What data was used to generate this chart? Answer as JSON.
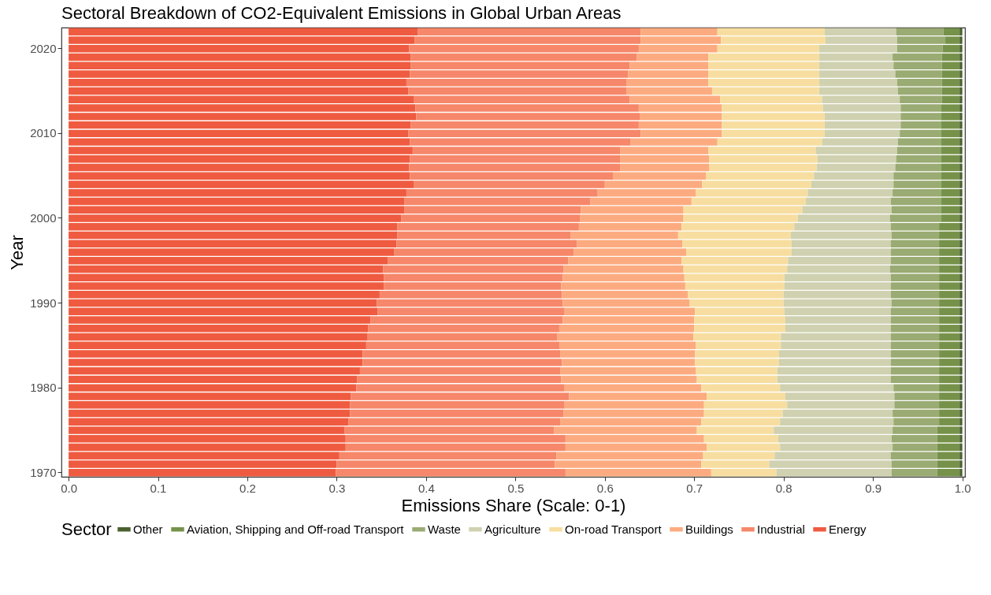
{
  "chart_data": {
    "type": "bar",
    "orientation": "horizontal",
    "stacked": true,
    "title": "Sectoral Breakdown of CO2-Equivalent Emissions in Global Urban Areas",
    "xlabel": "Emissions Share (Scale: 0-1)",
    "ylabel": "Year",
    "legend_title": "Sector",
    "legend": "bottom",
    "grid": false,
    "xlim": [
      -0.008,
      1.003
    ],
    "xticks": [
      {
        "value": 0,
        "label": "0.0"
      },
      {
        "value": 0.1,
        "label": "0.1"
      },
      {
        "value": 0.2,
        "label": "0.2"
      },
      {
        "value": 0.3,
        "label": "0.3"
      },
      {
        "value": 0.4,
        "label": "0.4"
      },
      {
        "value": 0.5,
        "label": "0.5"
      },
      {
        "value": 0.6,
        "label": "0.6"
      },
      {
        "value": 0.7,
        "label": "0.7"
      },
      {
        "value": 0.8,
        "label": "0.8"
      },
      {
        "value": 0.9,
        "label": "0.9"
      },
      {
        "value": 1,
        "label": "1.0"
      }
    ],
    "categories": [
      null,
      null,
      "2020",
      null,
      null,
      null,
      null,
      null,
      null,
      null,
      null,
      null,
      "2010",
      null,
      null,
      null,
      null,
      null,
      null,
      null,
      null,
      null,
      "2000",
      null,
      null,
      null,
      null,
      null,
      null,
      null,
      null,
      null,
      "1990",
      null,
      null,
      null,
      null,
      null,
      null,
      null,
      null,
      null,
      "1980",
      null,
      null,
      null,
      null,
      null,
      null,
      null,
      null,
      null,
      "1970"
    ],
    "series": [
      {
        "name": "Energy",
        "color": "#ef5b40",
        "values": [
          0.391,
          0.387,
          0.381,
          0.383,
          0.383,
          0.382,
          0.378,
          0.38,
          0.386,
          0.388,
          0.389,
          0.383,
          0.38,
          0.382,
          0.385,
          0.382,
          0.381,
          0.382,
          0.386,
          0.378,
          0.376,
          0.376,
          0.372,
          0.368,
          0.368,
          0.367,
          0.364,
          0.357,
          0.352,
          0.353,
          0.353,
          0.348,
          0.345,
          0.346,
          0.338,
          0.335,
          0.334,
          0.333,
          0.329,
          0.329,
          0.326,
          0.323,
          0.322,
          0.316,
          0.315,
          0.315,
          0.313,
          0.309,
          0.31,
          0.31,
          0.303,
          0.3,
          0.299
        ]
      },
      {
        "name": "Industrial",
        "color": "#f6876a",
        "values": [
          0.249,
          0.253,
          0.257,
          0.253,
          0.245,
          0.244,
          0.246,
          0.244,
          0.242,
          0.25,
          0.25,
          0.255,
          0.26,
          0.247,
          0.232,
          0.235,
          0.236,
          0.227,
          0.214,
          0.214,
          0.208,
          0.197,
          0.2,
          0.203,
          0.194,
          0.202,
          0.201,
          0.202,
          0.202,
          0.2,
          0.198,
          0.204,
          0.208,
          0.209,
          0.215,
          0.214,
          0.213,
          0.216,
          0.221,
          0.223,
          0.224,
          0.228,
          0.233,
          0.244,
          0.24,
          0.239,
          0.237,
          0.234,
          0.246,
          0.246,
          0.243,
          0.244,
          0.257
        ]
      },
      {
        "name": "Buildings",
        "color": "#fcab80",
        "values": [
          0.086,
          0.09,
          0.088,
          0.08,
          0.088,
          0.09,
          0.092,
          0.096,
          0.101,
          0.093,
          0.092,
          0.093,
          0.091,
          0.097,
          0.099,
          0.1,
          0.1,
          0.104,
          0.109,
          0.11,
          0.113,
          0.115,
          0.116,
          0.115,
          0.12,
          0.118,
          0.126,
          0.127,
          0.134,
          0.136,
          0.139,
          0.141,
          0.142,
          0.146,
          0.147,
          0.151,
          0.152,
          0.153,
          0.151,
          0.149,
          0.152,
          0.152,
          0.153,
          0.154,
          0.156,
          0.157,
          0.158,
          0.16,
          0.155,
          0.158,
          0.164,
          0.164,
          0.163
        ]
      },
      {
        "name": "On-road Transport",
        "color": "#f7dea0",
        "values": [
          0.12,
          0.117,
          0.114,
          0.124,
          0.124,
          0.124,
          0.124,
          0.12,
          0.114,
          0.113,
          0.115,
          0.115,
          0.115,
          0.117,
          0.12,
          0.121,
          0.12,
          0.121,
          0.122,
          0.125,
          0.128,
          0.133,
          0.128,
          0.126,
          0.126,
          0.122,
          0.118,
          0.119,
          0.116,
          0.112,
          0.111,
          0.107,
          0.105,
          0.1,
          0.102,
          0.102,
          0.098,
          0.095,
          0.094,
          0.094,
          0.091,
          0.09,
          0.088,
          0.088,
          0.093,
          0.088,
          0.088,
          0.086,
          0.083,
          0.082,
          0.08,
          0.076,
          0.073
        ]
      },
      {
        "name": "Agriculture",
        "color": "#cfd1b0",
        "values": [
          0.08,
          0.08,
          0.087,
          0.082,
          0.083,
          0.085,
          0.087,
          0.088,
          0.087,
          0.087,
          0.085,
          0.085,
          0.084,
          0.085,
          0.091,
          0.088,
          0.088,
          0.089,
          0.092,
          0.095,
          0.095,
          0.1,
          0.103,
          0.108,
          0.113,
          0.111,
          0.111,
          0.115,
          0.115,
          0.119,
          0.119,
          0.12,
          0.121,
          0.119,
          0.118,
          0.118,
          0.123,
          0.123,
          0.125,
          0.125,
          0.127,
          0.127,
          0.127,
          0.122,
          0.12,
          0.123,
          0.127,
          0.133,
          0.127,
          0.126,
          0.13,
          0.137,
          0.129
        ]
      },
      {
        "name": "Waste",
        "color": "#9aab73",
        "values": [
          0.053,
          0.054,
          0.051,
          0.055,
          0.054,
          0.052,
          0.05,
          0.049,
          0.047,
          0.045,
          0.045,
          0.045,
          0.046,
          0.048,
          0.049,
          0.05,
          0.051,
          0.053,
          0.053,
          0.054,
          0.056,
          0.055,
          0.057,
          0.054,
          0.053,
          0.054,
          0.054,
          0.054,
          0.055,
          0.054,
          0.054,
          0.054,
          0.053,
          0.054,
          0.054,
          0.054,
          0.054,
          0.054,
          0.054,
          0.054,
          0.054,
          0.054,
          0.051,
          0.05,
          0.05,
          0.052,
          0.051,
          0.05,
          0.051,
          0.05,
          0.052,
          0.051,
          0.051
        ]
      },
      {
        "name": "Aviation, Shipping and Off-road Transport",
        "color": "#76924a",
        "values": [
          0.018,
          0.016,
          0.019,
          0.02,
          0.02,
          0.02,
          0.02,
          0.02,
          0.02,
          0.021,
          0.021,
          0.021,
          0.021,
          0.021,
          0.021,
          0.021,
          0.021,
          0.021,
          0.021,
          0.021,
          0.021,
          0.021,
          0.021,
          0.023,
          0.023,
          0.023,
          0.023,
          0.023,
          0.023,
          0.023,
          0.023,
          0.023,
          0.023,
          0.023,
          0.023,
          0.023,
          0.023,
          0.023,
          0.023,
          0.023,
          0.023,
          0.023,
          0.023,
          0.023,
          0.023,
          0.023,
          0.023,
          0.025,
          0.025,
          0.025,
          0.025,
          0.025,
          0.025
        ]
      },
      {
        "name": "Other",
        "color": "#4a6130",
        "values": [
          0.003,
          0.003,
          0.003,
          0.003,
          0.003,
          0.003,
          0.003,
          0.003,
          0.003,
          0.003,
          0.003,
          0.003,
          0.003,
          0.003,
          0.003,
          0.003,
          0.003,
          0.003,
          0.003,
          0.003,
          0.003,
          0.003,
          0.003,
          0.003,
          0.003,
          0.003,
          0.003,
          0.003,
          0.003,
          0.003,
          0.003,
          0.003,
          0.003,
          0.003,
          0.003,
          0.003,
          0.003,
          0.003,
          0.003,
          0.003,
          0.003,
          0.003,
          0.003,
          0.003,
          0.003,
          0.003,
          0.003,
          0.003,
          0.003,
          0.003,
          0.003,
          0.003,
          0.003
        ]
      }
    ]
  }
}
